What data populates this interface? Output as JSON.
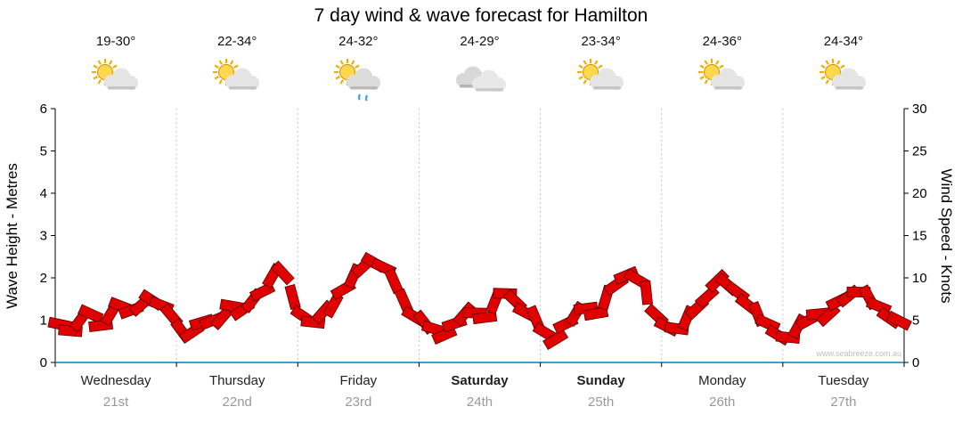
{
  "title": "7 day wind & wave forecast for Hamilton",
  "watermark": "www.seabreeze.com.au",
  "colors": {
    "flag_fill": "#e10000",
    "flag_stroke": "#5a0000",
    "baseline": "#3fa0c8",
    "separator": "#c8c8c8",
    "axis": "#000000",
    "date_text": "#999999"
  },
  "left_axis": {
    "label": "Wave Height - Metres",
    "ticks": [
      "0",
      "1",
      "2",
      "3",
      "4",
      "5",
      "6"
    ],
    "range": [
      0,
      6
    ]
  },
  "right_axis": {
    "label": "Wind Speed - Knots",
    "ticks": [
      "0",
      "5",
      "10",
      "15",
      "20",
      "25",
      "30"
    ],
    "range": [
      0,
      30
    ]
  },
  "days": [
    {
      "name": "Wednesday",
      "date": "21st",
      "temp": "19-30°",
      "icon": "sun-cloud",
      "weekend": false
    },
    {
      "name": "Thursday",
      "date": "22nd",
      "temp": "22-34°",
      "icon": "sun-cloud",
      "weekend": false
    },
    {
      "name": "Friday",
      "date": "23rd",
      "temp": "24-32°",
      "icon": "sun-cloud-rain",
      "weekend": false
    },
    {
      "name": "Saturday",
      "date": "24th",
      "temp": "24-29°",
      "icon": "cloud",
      "weekend": true
    },
    {
      "name": "Sunday",
      "date": "25th",
      "temp": "23-34°",
      "icon": "sun-cloud",
      "weekend": true
    },
    {
      "name": "Monday",
      "date": "26th",
      "temp": "24-36°",
      "icon": "sun-cloud",
      "weekend": false
    },
    {
      "name": "Tuesday",
      "date": "27th",
      "temp": "24-34°",
      "icon": "sun-cloud",
      "weekend": false
    }
  ],
  "chart_data": {
    "type": "area",
    "title": "7 day wind & wave forecast for Hamilton",
    "ylabel_left": "Wave Height - Metres",
    "ylabel_right": "Wind Speed - Knots",
    "ylim_left": [
      0,
      6
    ],
    "ylim_right": [
      0,
      30
    ],
    "axis_mapping": "1 metre on left axis aligns with 5 knots on right axis; red flag band reads on both",
    "categories": [
      "Wednesday 21st",
      "Thursday 22nd",
      "Friday 23rd",
      "Saturday 24th",
      "Sunday 25th",
      "Monday 26th",
      "Tuesday 27th"
    ],
    "samples_per_day": 12,
    "wave_height_m": [
      0.9,
      0.8,
      1.0,
      1.1,
      0.9,
      1.2,
      1.3,
      1.2,
      1.4,
      1.5,
      1.3,
      1.1,
      0.8,
      0.7,
      0.9,
      1.0,
      1.1,
      1.3,
      1.2,
      1.5,
      1.7,
      2.0,
      2.1,
      1.6,
      1.1,
      0.9,
      1.2,
      1.4,
      1.7,
      2.0,
      2.3,
      2.4,
      2.2,
      1.9,
      1.5,
      1.1,
      0.9,
      0.8,
      0.7,
      0.9,
      1.1,
      1.2,
      1.1,
      1.4,
      1.6,
      1.5,
      1.2,
      1.0,
      0.7,
      0.6,
      0.9,
      1.1,
      1.3,
      1.2,
      1.5,
      1.8,
      2.1,
      2.0,
      1.6,
      1.1,
      0.9,
      0.8,
      1.0,
      1.3,
      1.6,
      1.9,
      1.8,
      1.7,
      1.4,
      1.1,
      0.9,
      0.7,
      0.6,
      0.8,
      1.0,
      1.2,
      1.1,
      1.4,
      1.6,
      1.7,
      1.5,
      1.3,
      1.1,
      1.0
    ],
    "grid": "vertical dotted separators at day boundaries",
    "legend": "none"
  }
}
